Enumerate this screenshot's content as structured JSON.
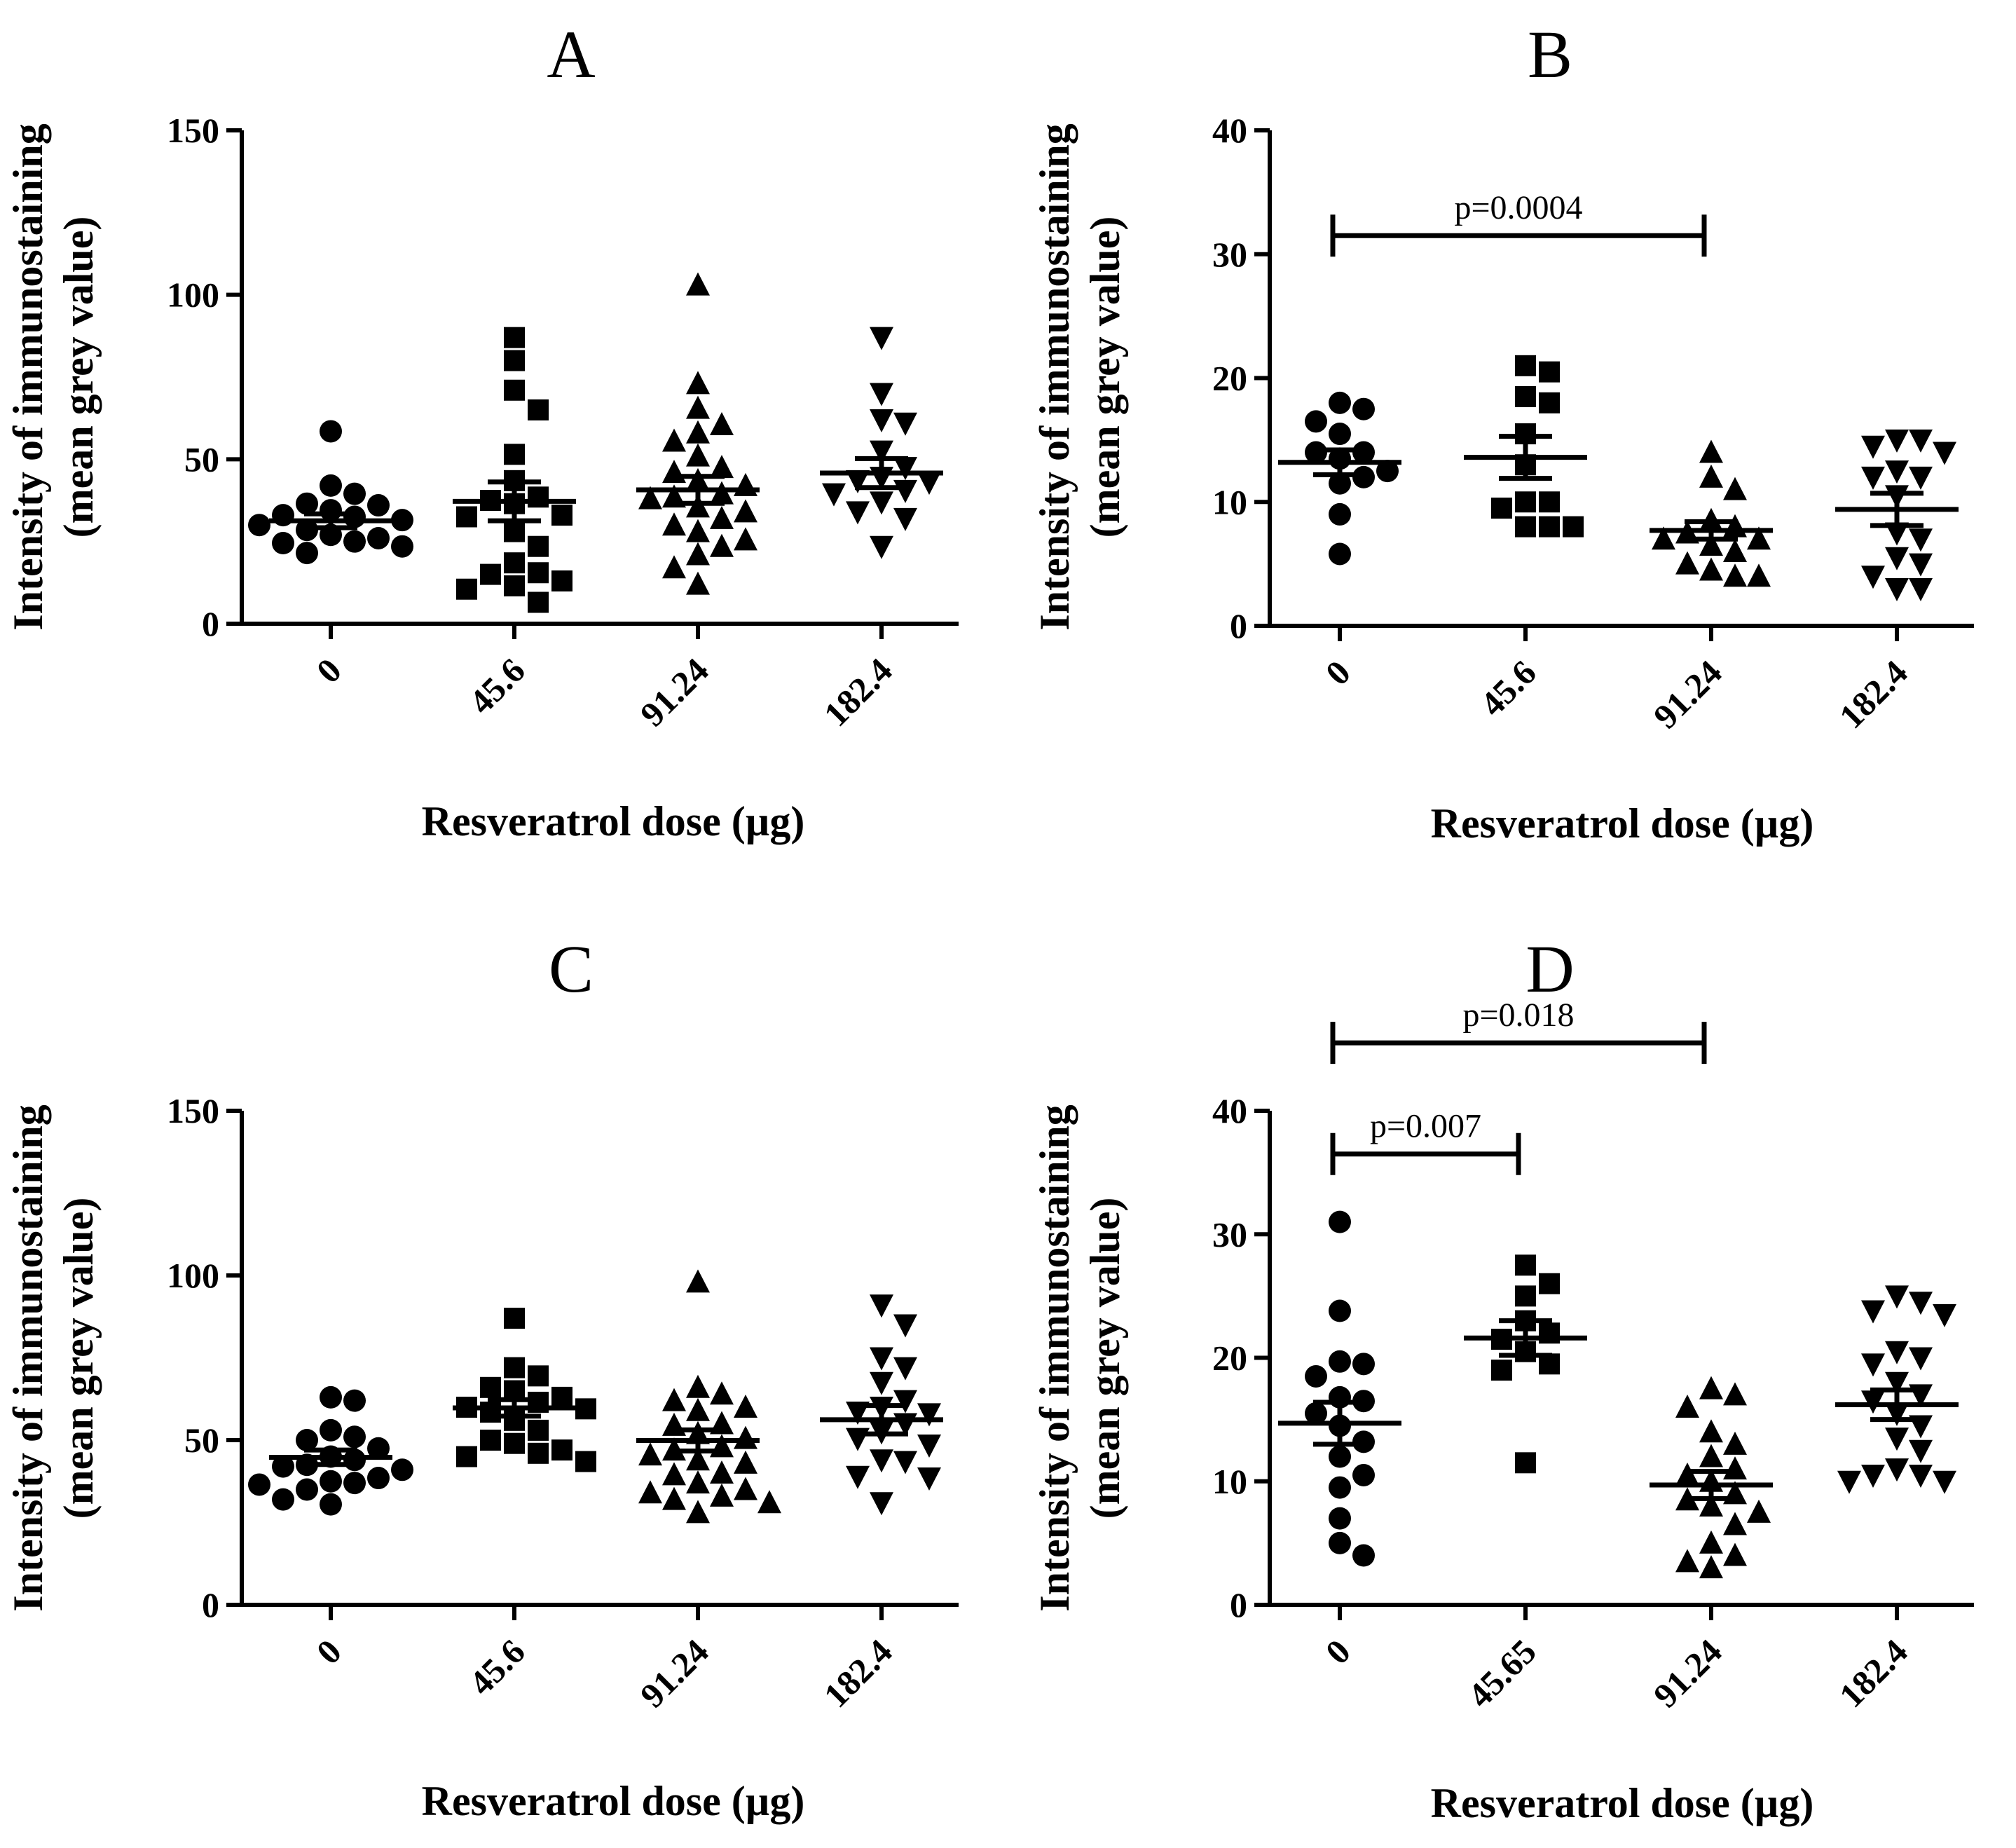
{
  "figure": {
    "marker_color": "#000000",
    "background": "#ffffff"
  },
  "chart_data": [
    {
      "type": "scatter",
      "panel": "A",
      "title": "A",
      "ylabel_line1": "Intensity of immunostaining",
      "ylabel_line2": "(mean grey value)",
      "xlabel": "Resveratrol dose (µg)",
      "ylim": [
        0,
        150
      ],
      "yticks": [
        0,
        50,
        100,
        150
      ],
      "categories": [
        "0",
        "45.6",
        "91.24",
        "182.4"
      ],
      "markers": [
        "circle",
        "square",
        "triangle-up",
        "triangle-down"
      ],
      "series": [
        {
          "name": "0",
          "mean": 31.3,
          "sem": 2.1,
          "values": [
            58.5,
            42,
            39.5,
            36.5,
            36,
            34.5,
            33,
            32.5,
            31.5,
            30,
            28.5,
            27,
            26,
            25,
            24.5,
            23.5,
            21.5
          ]
        },
        {
          "name": "45.6",
          "mean": 37.2,
          "sem": 5.9,
          "values": [
            87,
            80,
            71,
            65,
            51.5,
            43.5,
            38.5,
            37.5,
            36.5,
            33,
            32.5,
            28,
            23.5,
            18.5,
            15.5,
            15,
            13,
            11.5,
            10.5,
            6.5
          ]
        },
        {
          "name": "91.24",
          "mean": 40.7,
          "sem": 4.1,
          "values": [
            103,
            73,
            65.5,
            60.5,
            58,
            55.5,
            51,
            47.5,
            46,
            43.5,
            42,
            39.5,
            38.5,
            38,
            35.5,
            34,
            32,
            30,
            28,
            25.5,
            23.5,
            21,
            17,
            12
          ]
        },
        {
          "name": "182.4",
          "mean": 45.8,
          "sem": 4.4,
          "values": [
            87,
            70,
            62,
            61,
            52.5,
            47.5,
            44.5,
            43.5,
            43,
            40.5,
            39.5,
            37,
            34,
            32,
            23.5
          ]
        }
      ],
      "significance": []
    },
    {
      "type": "scatter",
      "panel": "B",
      "title": "B",
      "ylabel_line1": "Intensity of immunostaining",
      "ylabel_line2": "(mean grey value)",
      "xlabel": "Resveratrol dose (µg)",
      "ylim": [
        0,
        40
      ],
      "yticks": [
        0,
        10,
        20,
        30,
        40
      ],
      "categories": [
        "0",
        "45.6",
        "91.24",
        "182.4"
      ],
      "markers": [
        "circle",
        "square",
        "triangle-up",
        "triangle-down"
      ],
      "series": [
        {
          "name": "0",
          "mean": 13.2,
          "sem": 1.0,
          "values": [
            18,
            17.5,
            16.5,
            15.5,
            14,
            14,
            13.5,
            12.5,
            12,
            11.5,
            9,
            5.8
          ]
        },
        {
          "name": "45.6",
          "mean": 13.6,
          "sem": 1.7,
          "values": [
            21,
            20.5,
            18.5,
            18,
            15.5,
            13,
            10,
            10,
            9.5,
            8,
            8,
            8
          ]
        },
        {
          "name": "91.24",
          "mean": 7.7,
          "sem": 0.7,
          "values": [
            14,
            12,
            11,
            8.5,
            8,
            7.5,
            7,
            7,
            6.5,
            6,
            5,
            4.5,
            4,
            4
          ]
        },
        {
          "name": "182.4",
          "mean": 9.4,
          "sem": 1.3,
          "values": [
            15,
            15,
            14.5,
            14,
            12.5,
            12,
            12,
            10.5,
            7.5,
            7,
            5.5,
            5,
            4,
            3,
            3
          ]
        }
      ],
      "significance": [
        {
          "from": "0",
          "to": "91.24",
          "y": 31.5,
          "label": "p=0.0004"
        }
      ]
    },
    {
      "type": "scatter",
      "panel": "C",
      "title": "C",
      "ylabel_line1": "Intensity of immunostaining",
      "ylabel_line2": "(mean grey value)",
      "xlabel": "Resveratrol dose (µg)",
      "ylim": [
        0,
        150
      ],
      "yticks": [
        0,
        50,
        100,
        150
      ],
      "categories": [
        "0",
        "45.6",
        "91.24",
        "182.4"
      ],
      "markers": [
        "circle",
        "square",
        "triangle-up",
        "triangle-down"
      ],
      "series": [
        {
          "name": "0",
          "mean": 44.8,
          "sem": 2.2,
          "values": [
            63,
            62,
            53,
            51,
            50,
            47.5,
            45,
            44,
            42.5,
            42,
            41,
            38.5,
            37.5,
            37,
            36.5,
            35,
            32,
            30.5
          ]
        },
        {
          "name": "45.6",
          "mean": 59.8,
          "sem": 2.5,
          "values": [
            87,
            72,
            69.5,
            66,
            65,
            63,
            61.5,
            60,
            59.5,
            58.5,
            56,
            53,
            50,
            49,
            47,
            46,
            45,
            43.5
          ]
        },
        {
          "name": "91.24",
          "mean": 49.9,
          "sem": 3.2,
          "values": [
            98,
            66,
            64,
            62,
            60,
            59,
            55,
            54.5,
            52,
            50.5,
            48,
            47,
            45.5,
            44,
            43,
            40,
            39.5,
            37,
            35,
            34,
            33,
            32,
            31,
            28
          ]
        },
        {
          "name": "182.4",
          "mean": 56.2,
          "sem": 4.3,
          "values": [
            91,
            85,
            75,
            72,
            67.5,
            62,
            60,
            58.5,
            58,
            55,
            52.5,
            50.5,
            48.5,
            44,
            43.5,
            39,
            38.5,
            31
          ]
        }
      ],
      "significance": []
    },
    {
      "type": "scatter",
      "panel": "D",
      "title": "D",
      "ylabel_line1": "Intensity of immunostaining",
      "ylabel_line2": "(mean grey value)",
      "xlabel": "Resveratrol dose (µg)",
      "ylim": [
        0,
        40
      ],
      "yticks": [
        0,
        10,
        20,
        30,
        40
      ],
      "categories": [
        "0",
        "45.65",
        "91.24",
        "182.4"
      ],
      "markers": [
        "circle",
        "square",
        "triangle-up",
        "triangle-down"
      ],
      "series": [
        {
          "name": "0",
          "mean": 14.7,
          "sem": 1.7,
          "values": [
            31,
            23.8,
            19.7,
            19.5,
            18.5,
            16.8,
            16.5,
            15.5,
            14.5,
            13.2,
            12,
            10.5,
            9.5,
            7,
            5,
            4
          ]
        },
        {
          "name": "45.65",
          "mean": 21.6,
          "sem": 1.4,
          "values": [
            27.5,
            26,
            25,
            23,
            22,
            21.5,
            20.5,
            19.5,
            19,
            11.5
          ]
        },
        {
          "name": "91.24",
          "mean": 9.7,
          "sem": 1.1,
          "values": [
            17.5,
            17,
            16,
            14,
            13,
            12,
            11,
            10.5,
            10,
            9,
            8.5,
            8,
            7.5,
            6.5,
            5,
            4,
            3.5,
            3
          ]
        },
        {
          "name": "182.4",
          "mean": 16.2,
          "sem": 1.2,
          "values": [
            25,
            24.5,
            23.8,
            23.5,
            20.5,
            20,
            19.5,
            18,
            17,
            16.5,
            15.5,
            14.5,
            13.5,
            12.5,
            11,
            10.5,
            10.5,
            10,
            10
          ]
        }
      ],
      "significance": [
        {
          "from": "0",
          "to": "91.24",
          "y": 45.5,
          "label": "p=0.018"
        },
        {
          "from": "0",
          "to": "45.65",
          "y": 36.5,
          "label": "p=0.007"
        }
      ]
    }
  ]
}
